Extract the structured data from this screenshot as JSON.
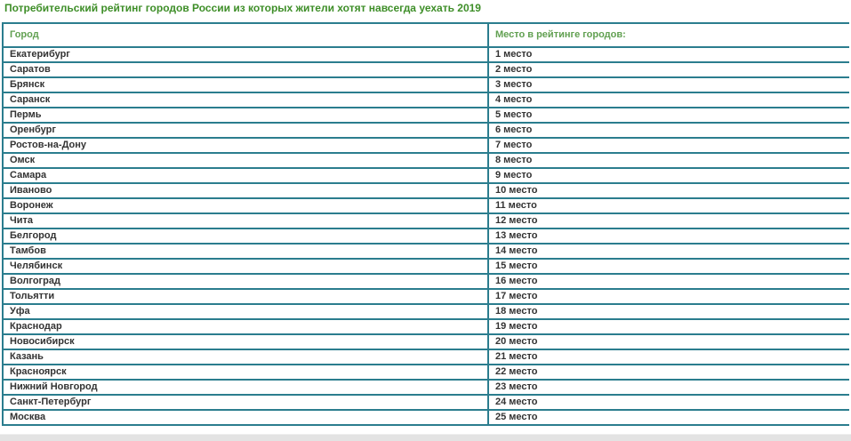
{
  "title": "Потребительский рейтинг городов России из которых жители хотят навсегда уехать 2019",
  "colors": {
    "title_green": "#3e8e28",
    "header_green": "#61a051",
    "table_border_teal": "#2b7d8e",
    "cell_text": "#333333",
    "bottom_bar_gray": "#e3e3e3"
  },
  "table": {
    "headers": [
      "Город",
      "Место в рейтинге городов:"
    ],
    "rows": [
      {
        "city": "Екатерибург",
        "place": "1 место"
      },
      {
        "city": "Саратов",
        "place": "2 место"
      },
      {
        "city": "Брянск",
        "place": "3 место"
      },
      {
        "city": "Саранск",
        "place": "4 место"
      },
      {
        "city": "Пермь",
        "place": "5 место"
      },
      {
        "city": "Оренбург",
        "place": "6 место"
      },
      {
        "city": "Ростов-на-Дону",
        "place": "7 место"
      },
      {
        "city": "Омск",
        "place": "8 место"
      },
      {
        "city": "Самара",
        "place": "9 место"
      },
      {
        "city": "Иваново",
        "place": "10 место"
      },
      {
        "city": "Воронеж",
        "place": "11 место"
      },
      {
        "city": "Чита",
        "place": "12 место"
      },
      {
        "city": "Белгород",
        "place": "13 место"
      },
      {
        "city": "Тамбов",
        "place": "14 место"
      },
      {
        "city": "Челябинск",
        "place": "15 место"
      },
      {
        "city": "Волгоград",
        "place": "16 место"
      },
      {
        "city": "Тольятти",
        "place": "17 место"
      },
      {
        "city": "Уфа",
        "place": "18 место"
      },
      {
        "city": "Краснодар",
        "place": "19 место"
      },
      {
        "city": "Новосибирск",
        "place": "20 место"
      },
      {
        "city": "Казань",
        "place": "21 место"
      },
      {
        "city": "Красноярск",
        "place": "22 место"
      },
      {
        "city": "Нижний Новгород",
        "place": "23 место"
      },
      {
        "city": "Санкт-Петербург",
        "place": "24 место"
      },
      {
        "city": "Москва",
        "place": "25 место"
      }
    ]
  }
}
